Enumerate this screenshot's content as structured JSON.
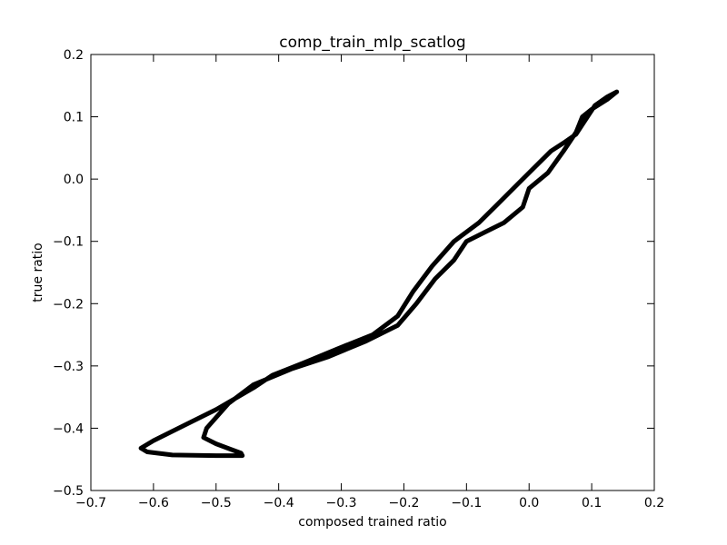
{
  "chart_data": {
    "type": "line",
    "title": "comp_train_mlp_scatlog",
    "xlabel": "composed trained ratio",
    "ylabel": "true ratio",
    "xlim": [
      -0.7,
      0.2
    ],
    "ylim": [
      -0.5,
      0.2
    ],
    "grid": false,
    "x_ticks": [
      -0.7,
      -0.6,
      -0.5,
      -0.4,
      -0.3,
      -0.2,
      -0.1,
      0.0,
      0.1,
      0.2
    ],
    "x_tick_labels": [
      "−0.7",
      "−0.6",
      "−0.5",
      "−0.4",
      "−0.3",
      "−0.2",
      "−0.1",
      "0.0",
      "0.1",
      "0.2"
    ],
    "y_ticks": [
      -0.5,
      -0.4,
      -0.3,
      -0.2,
      -0.1,
      0.0,
      0.1,
      0.2
    ],
    "y_tick_labels": [
      "−0.5",
      "−0.4",
      "−0.3",
      "−0.2",
      "−0.1",
      "0.0",
      "0.1",
      "0.2"
    ],
    "series": [
      {
        "color": "#000000",
        "points": [
          [
            0.14,
            0.14
          ],
          [
            0.125,
            0.132
          ],
          [
            0.105,
            0.118
          ],
          [
            0.09,
            0.095
          ],
          [
            0.075,
            0.072
          ],
          [
            0.055,
            0.058
          ],
          [
            0.035,
            0.045
          ],
          [
            0.01,
            0.02
          ],
          [
            -0.02,
            -0.01
          ],
          [
            -0.05,
            -0.04
          ],
          [
            -0.08,
            -0.07
          ],
          [
            -0.12,
            -0.1
          ],
          [
            -0.155,
            -0.14
          ],
          [
            -0.185,
            -0.18
          ],
          [
            -0.21,
            -0.22
          ],
          [
            -0.25,
            -0.25
          ],
          [
            -0.3,
            -0.27
          ],
          [
            -0.36,
            -0.295
          ],
          [
            -0.41,
            -0.315
          ],
          [
            -0.44,
            -0.335
          ],
          [
            -0.5,
            -0.37
          ],
          [
            -0.55,
            -0.395
          ],
          [
            -0.6,
            -0.42
          ],
          [
            -0.62,
            -0.432
          ],
          [
            -0.61,
            -0.438
          ],
          [
            -0.57,
            -0.443
          ],
          [
            -0.5,
            -0.444
          ],
          [
            -0.458,
            -0.444
          ],
          [
            -0.46,
            -0.44
          ],
          [
            -0.5,
            -0.425
          ],
          [
            -0.52,
            -0.415
          ],
          [
            -0.515,
            -0.4
          ],
          [
            -0.48,
            -0.36
          ],
          [
            -0.44,
            -0.33
          ],
          [
            -0.38,
            -0.305
          ],
          [
            -0.32,
            -0.285
          ],
          [
            -0.26,
            -0.26
          ],
          [
            -0.21,
            -0.235
          ],
          [
            -0.18,
            -0.2
          ],
          [
            -0.15,
            -0.16
          ],
          [
            -0.12,
            -0.13
          ],
          [
            -0.1,
            -0.1
          ],
          [
            -0.07,
            -0.085
          ],
          [
            -0.04,
            -0.07
          ],
          [
            -0.01,
            -0.045
          ],
          [
            0.0,
            -0.015
          ],
          [
            0.03,
            0.01
          ],
          [
            0.055,
            0.045
          ],
          [
            0.075,
            0.075
          ],
          [
            0.085,
            0.1
          ],
          [
            0.1,
            0.112
          ],
          [
            0.125,
            0.128
          ],
          [
            0.14,
            0.14
          ]
        ]
      }
    ]
  }
}
